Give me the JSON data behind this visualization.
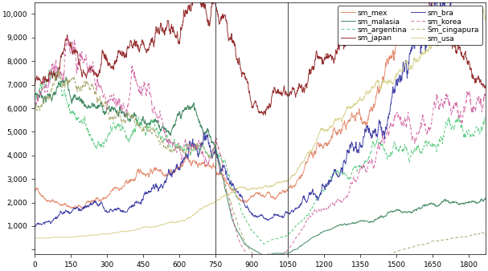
{
  "title": "",
  "xlabel": "",
  "ylabel": "",
  "xlim": [
    0,
    1870
  ],
  "ylim": [
    -200,
    10500
  ],
  "xticks": [
    0,
    150,
    300,
    450,
    600,
    750,
    900,
    1050,
    1200,
    1350,
    1500,
    1650,
    1800
  ],
  "ytick_vals": [
    0,
    1000,
    2000,
    3000,
    4000,
    5000,
    6000,
    7000,
    8000,
    9000,
    10000
  ],
  "ytick_labels": [
    "",
    "1,000",
    "2,000",
    "3,000",
    "4,000",
    "5,000",
    "6,000",
    "7,000",
    "8,000",
    "9,000",
    "10,000"
  ],
  "vline1": 750,
  "vline2": 1050,
  "n_points": 1870,
  "series": [
    {
      "name": "sm_mex",
      "color": "#e08060",
      "linestyle": "solid",
      "lw": 0.7
    },
    {
      "name": "sm_malasia",
      "color": "#2e7d52",
      "linestyle": "solid",
      "lw": 0.7
    },
    {
      "name": "sm_argentina",
      "color": "#50c878",
      "linestyle": "dashed",
      "lw": 0.7
    },
    {
      "name": "sm_japan",
      "color": "#8b1a1a",
      "linestyle": "solid",
      "lw": 0.7
    },
    {
      "name": "sm_bra",
      "color": "#3030a0",
      "linestyle": "solid",
      "lw": 0.7
    },
    {
      "name": "sm_korea",
      "color": "#d060a0",
      "linestyle": "dashed",
      "lw": 0.7
    },
    {
      "name": "Sm_cingapura",
      "color": "#a0a060",
      "linestyle": "dashed",
      "lw": 0.7
    },
    {
      "name": "sm_usa",
      "color": "#d4cc80",
      "linestyle": "solid",
      "lw": 0.7
    }
  ],
  "legend_cols": 2,
  "legend_fontsize": 6.5,
  "tick_fontsize": 6.5,
  "background": "#ffffff"
}
